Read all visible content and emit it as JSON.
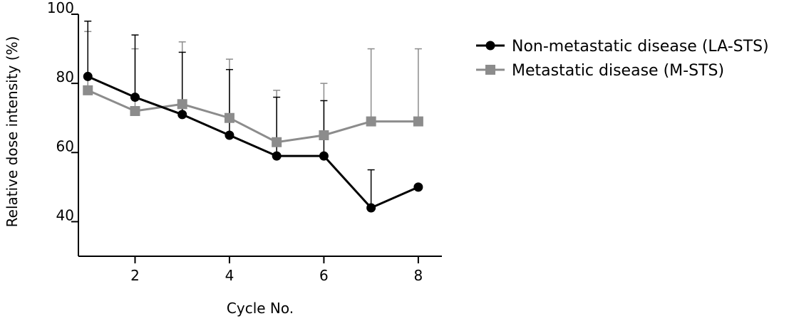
{
  "chart_data": {
    "type": "line",
    "title": "",
    "xlabel": "Cycle No.",
    "ylabel": "Relative dose intensity (%)",
    "xlim": [
      0.8,
      8.5
    ],
    "ylim": [
      30,
      100
    ],
    "x_ticks": [
      2,
      4,
      6,
      8
    ],
    "y_ticks": [
      40,
      60,
      80,
      100
    ],
    "x_tick_labels": [
      "2",
      "4",
      "6",
      "8"
    ],
    "y_tick_labels": [
      "40",
      "60",
      "80",
      "100"
    ],
    "grid": false,
    "legend_position": "top-right",
    "series": [
      {
        "name": "Non-metastatic disease (LA-STS)",
        "color": "#000000",
        "marker": "circle",
        "x": [
          1,
          2,
          3,
          4,
          5,
          6,
          7,
          8
        ],
        "values": [
          82,
          76,
          71,
          65,
          59,
          59,
          44,
          50
        ],
        "error_upper": [
          98,
          94,
          89,
          84,
          76,
          75,
          55,
          null
        ]
      },
      {
        "name": "Metastatic disease (M-STS)",
        "color": "#8c8c8c",
        "marker": "square",
        "x": [
          1,
          2,
          3,
          4,
          5,
          6,
          7,
          8
        ],
        "values": [
          78,
          72,
          74,
          70,
          63,
          65,
          69,
          69
        ],
        "error_upper": [
          95,
          90,
          92,
          87,
          78,
          80,
          90,
          90
        ]
      }
    ]
  }
}
